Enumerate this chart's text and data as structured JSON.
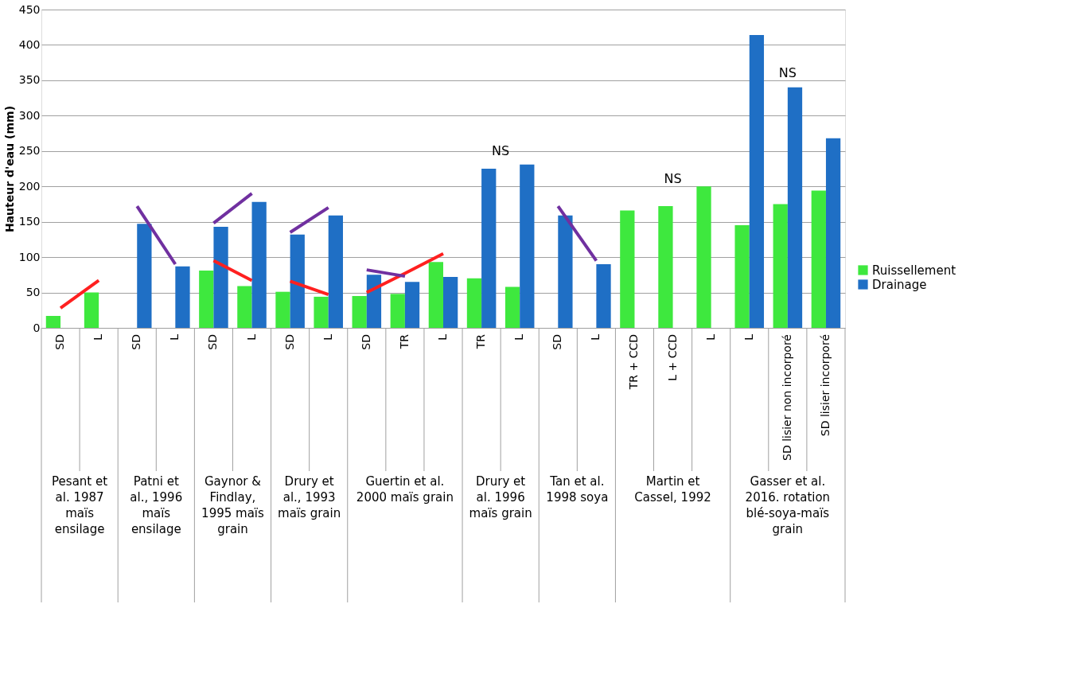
{
  "chart_data": {
    "type": "bar",
    "ylabel": "Hauteur d'eau (mm)",
    "categories": [
      "SD",
      "L",
      "SD",
      "L",
      "SD",
      "L",
      "SD",
      "L",
      "SD",
      "TR",
      "L",
      "TR",
      "L",
      "SD",
      "L",
      "TR + CCD",
      "L + CCD",
      "L",
      "L",
      "SD lisier non incorporé",
      "SD lisier incorporé"
    ],
    "series": [
      {
        "name": "Ruissellement",
        "color": "#3ee83e",
        "values": [
          17,
          50,
          null,
          null,
          81,
          59,
          51,
          44,
          45,
          48,
          93,
          70,
          58,
          null,
          null,
          166,
          172,
          200,
          145,
          175,
          194
        ]
      },
      {
        "name": "Drainage",
        "color": "#1f6fc5",
        "values": [
          null,
          null,
          147,
          87,
          143,
          178,
          132,
          159,
          75,
          65,
          72,
          225,
          231,
          159,
          90,
          null,
          null,
          null,
          414,
          340,
          268
        ]
      },
      {
        "type": "line",
        "color": "#ff2020",
        "values": [
          28,
          67,
          null,
          null,
          null,
          null,
          66,
          47,
          null,
          null,
          null,
          null,
          null,
          null,
          null,
          null,
          null,
          null,
          null,
          null,
          null
        ]
      },
      {
        "type": "line",
        "color": "#ff2020",
        "values": [
          null,
          null,
          null,
          null,
          95,
          67,
          null,
          null,
          50,
          77,
          105,
          null,
          null,
          null,
          null,
          null,
          null,
          null,
          null,
          null,
          null
        ]
      },
      {
        "type": "line",
        "color": "#7030a0",
        "values": [
          null,
          null,
          172,
          90,
          null,
          null,
          135,
          170,
          null,
          null,
          null,
          null,
          null,
          172,
          95,
          null,
          null,
          null,
          null,
          null,
          null
        ]
      },
      {
        "type": "line",
        "color": "#7030a0",
        "values": [
          null,
          null,
          null,
          null,
          148,
          190,
          null,
          null,
          82,
          73,
          null,
          null,
          null,
          null,
          null,
          null,
          null,
          null,
          null,
          null,
          null
        ]
      }
    ],
    "ylim": [
      0,
      450
    ],
    "yticks": [
      0,
      50,
      100,
      150,
      200,
      250,
      300,
      350,
      400,
      450
    ],
    "grid": "y",
    "legend": "right",
    "annotations": [
      "Pesant et al. 1987 maïs ensilage",
      "Patni et al., 1996 maïs ensilage",
      "Gaynor & Findlay, 1995 maïs grain",
      "Drury et al., 1993 maïs grain",
      "Guertin et al. 2000 maïs grain",
      "Drury et al. 1996 maïs grain",
      "Tan et al. 1998 soya",
      "Martin et Cassel, 1992",
      "Gasser et al. 2016. rotation blé-soya-maïs grain",
      "NS",
      "NS",
      "NS"
    ]
  }
}
